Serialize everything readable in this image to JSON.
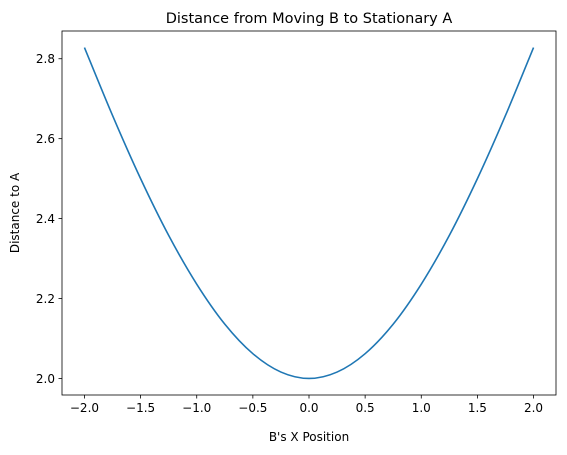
{
  "chart_data": {
    "type": "line",
    "title": "Distance from Moving B to Stationary A",
    "xlabel": "B's X Position",
    "ylabel": "Distance to A",
    "xlim": [
      -2.2,
      2.2
    ],
    "ylim": [
      1.9586,
      2.8694
    ],
    "grid": false,
    "xticks": [
      -2.0,
      -1.5,
      -1.0,
      -0.5,
      0.0,
      0.5,
      1.0,
      1.5,
      2.0
    ],
    "xtick_labels": [
      "−2.0",
      "−1.5",
      "−1.0",
      "−0.5",
      "0.0",
      "0.5",
      "1.0",
      "1.5",
      "2.0"
    ],
    "yticks": [
      2.0,
      2.2,
      2.4,
      2.6,
      2.8
    ],
    "ytick_labels": [
      "2.0",
      "2.2",
      "2.4",
      "2.6",
      "2.8"
    ],
    "series": [
      {
        "color": "#1f77b4",
        "x": [
          -2.0,
          -1.75,
          -1.5,
          -1.25,
          -1.0,
          -0.75,
          -0.5,
          -0.25,
          0.0,
          0.25,
          0.5,
          0.75,
          1.0,
          1.25,
          1.5,
          1.75,
          2.0
        ],
        "y": [
          2.828,
          2.658,
          2.5,
          2.358,
          2.236,
          2.136,
          2.062,
          2.016,
          2.0,
          2.016,
          2.062,
          2.136,
          2.236,
          2.358,
          2.5,
          2.658,
          2.828
        ]
      }
    ]
  }
}
